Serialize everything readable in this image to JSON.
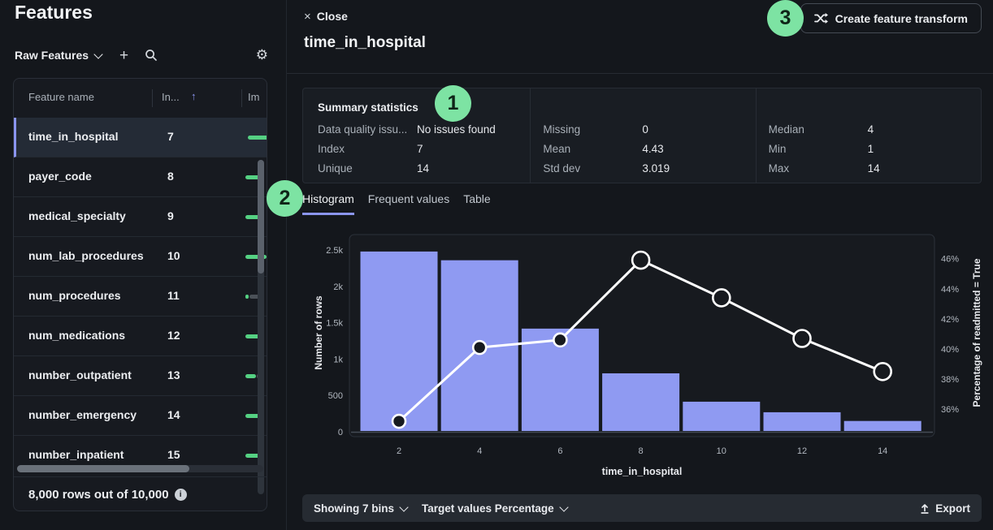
{
  "sidebar": {
    "title": "Features",
    "collection_label": "Raw Features",
    "columns": {
      "name": "Feature name",
      "index": "In...",
      "importance": "Im"
    },
    "rows": [
      {
        "name": "time_in_hospital",
        "index": "7",
        "selected": true,
        "importance": 1.0,
        "track": 0
      },
      {
        "name": "payer_code",
        "index": "8",
        "selected": false,
        "importance": 0.8,
        "track": 0
      },
      {
        "name": "medical_specialty",
        "index": "9",
        "selected": false,
        "importance": 0.68,
        "track": 0
      },
      {
        "name": "num_lab_procedures",
        "index": "10",
        "selected": false,
        "importance": 1.0,
        "track": 0
      },
      {
        "name": "num_procedures",
        "index": "11",
        "selected": false,
        "importance": 0.15,
        "track": 0.65
      },
      {
        "name": "num_medications",
        "index": "12",
        "selected": false,
        "importance": 0.8,
        "track": 0
      },
      {
        "name": "number_outpatient",
        "index": "13",
        "selected": false,
        "importance": 0.5,
        "track": 0.15
      },
      {
        "name": "number_emergency",
        "index": "14",
        "selected": false,
        "importance": 0.7,
        "track": 0
      },
      {
        "name": "number_inpatient",
        "index": "15",
        "selected": false,
        "importance": 0.7,
        "track": 0
      }
    ],
    "footer": "8,000 rows out of 10,000"
  },
  "header": {
    "close_label": "Close",
    "title": "time_in_hospital",
    "create_transform_label": "Create feature transform"
  },
  "annotations": {
    "step1": "1",
    "step2": "2",
    "step3": "3"
  },
  "summary": {
    "title": "Summary statistics",
    "stats": [
      {
        "label": "Data quality issu...",
        "value": "No issues found"
      },
      {
        "label": "Index",
        "value": "7"
      },
      {
        "label": "Unique",
        "value": "14"
      },
      {
        "label": "Missing",
        "value": "0"
      },
      {
        "label": "Mean",
        "value": "4.43"
      },
      {
        "label": "Std dev",
        "value": "3.019"
      },
      {
        "label": "Median",
        "value": "4"
      },
      {
        "label": "Min",
        "value": "1"
      },
      {
        "label": "Max",
        "value": "14"
      }
    ]
  },
  "tabs": [
    {
      "label": "Histogram",
      "active": true
    },
    {
      "label": "Frequent values",
      "active": false
    },
    {
      "label": "Table",
      "active": false
    }
  ],
  "chart_data": {
    "type": "bar",
    "categories": [
      2,
      4,
      6,
      8,
      10,
      12,
      14
    ],
    "series": [
      {
        "name": "Number of rows",
        "type": "bar",
        "axis": "left",
        "values": [
          2490,
          2370,
          1430,
          815,
          425,
          280,
          160
        ],
        "color": "#8f9af2"
      },
      {
        "name": "Percentage of readmitted = True",
        "type": "line",
        "axis": "right",
        "values": [
          35.2,
          40.1,
          40.6,
          45.9,
          43.4,
          40.7,
          38.5
        ],
        "color": "#ffffff"
      }
    ],
    "title": "",
    "xlabel": "time_in_hospital",
    "ylabel_left": "Number of rows",
    "ylabel_right": "Percentage of readmitted = True",
    "left_ticks": [
      {
        "v": 0,
        "t": "0"
      },
      {
        "v": 500,
        "t": "500"
      },
      {
        "v": 1000,
        "t": "1k"
      },
      {
        "v": 1500,
        "t": "1.5k"
      },
      {
        "v": 2000,
        "t": "2k"
      },
      {
        "v": 2500,
        "t": "2.5k"
      }
    ],
    "right_ticks": [
      {
        "v": 36,
        "t": "36%"
      },
      {
        "v": 38,
        "t": "38%"
      },
      {
        "v": 40,
        "t": "40%"
      },
      {
        "v": 42,
        "t": "42%"
      },
      {
        "v": 44,
        "t": "44%"
      },
      {
        "v": 46,
        "t": "46%"
      }
    ],
    "ylim_left": [
      0,
      2500
    ],
    "ylim_right": [
      34.5,
      47.6
    ],
    "grid": false,
    "legend": "none"
  },
  "chart_footer": {
    "bins_label": "Showing 7 bins",
    "target_label": "Target values Percentage",
    "export_label": "Export"
  },
  "icons": {
    "gear": "⚙",
    "plus": "+",
    "sort_asc": "↑",
    "close": "×",
    "info": "i"
  },
  "colors": {
    "accent": "#8b95f0",
    "bar": "#8f9af2",
    "annotation": "#7de3a3",
    "importance": "#55d183"
  }
}
